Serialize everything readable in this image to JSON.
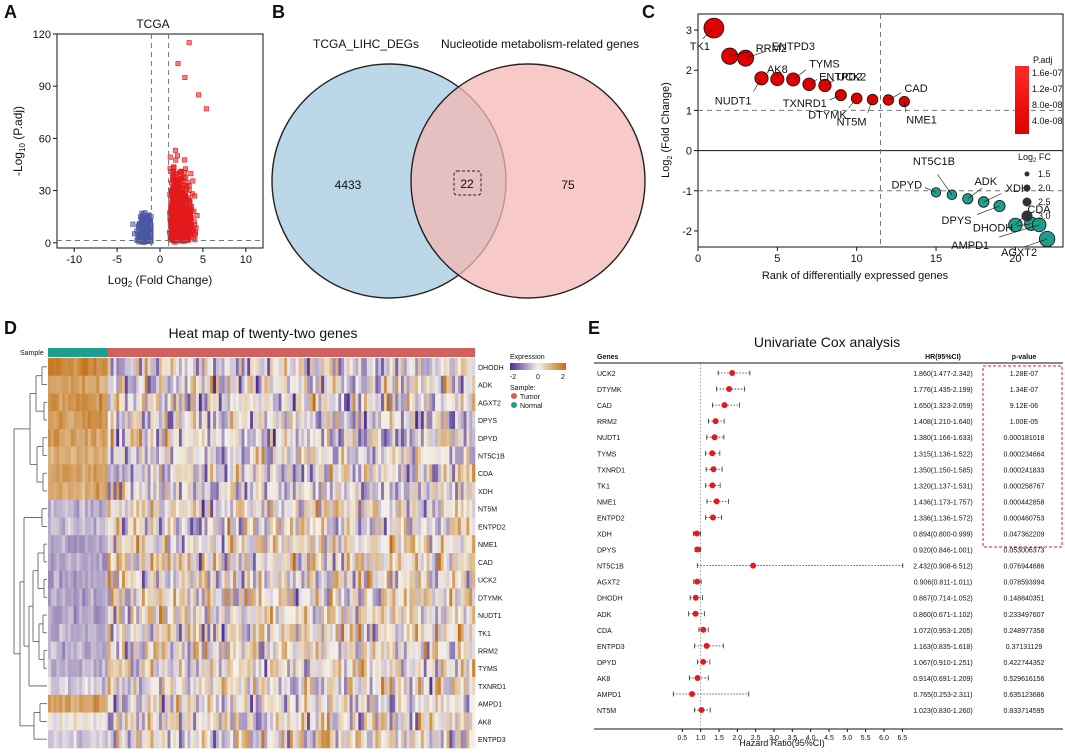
{
  "panel_letters": [
    "A",
    "B",
    "C",
    "D",
    "E"
  ],
  "colors": {
    "up": "#e41a1c",
    "down": "#4a58a5",
    "venn_left": "#bcd8e8",
    "venn_right": "#f4b8b4",
    "teal": "#1f9e8e",
    "tumor": "#d2605c",
    "normal": "#1f9e8e",
    "heat_low": "#4b2c8f",
    "heat_mid": "#f4f1ea",
    "heat_high": "#c06d0c"
  },
  "chart_data": [
    {
      "panel": "A",
      "type": "scatter",
      "title": "TCGA",
      "xlabel": "Log2 (Fold Change)",
      "ylabel": "-Log10 (P.adj)",
      "xlabel_parts": [
        "Log",
        "2",
        " (Fold Change)"
      ],
      "ylabel_parts": [
        "-Log",
        "10",
        " (P.adj)"
      ],
      "xlim": [
        -12,
        12
      ],
      "ylim": [
        -3,
        120
      ],
      "xticks": [
        -10,
        -5,
        0,
        5,
        10
      ],
      "yticks": [
        0,
        30,
        60,
        90,
        120
      ],
      "thresholds": {
        "fc": [
          -1,
          1
        ],
        "padj": 1.3
      },
      "series": [
        {
          "name": "down",
          "color": "#4a58a5",
          "x_range": [
            -6.0,
            -1.0
          ],
          "points_drawn": 380
        },
        {
          "name": "up",
          "color": "#e41a1c",
          "x_range": [
            1.0,
            11.0
          ],
          "points_drawn": 800
        }
      ],
      "highlight_points": [
        {
          "x": 3.4,
          "y": 115
        },
        {
          "x": 2.1,
          "y": 103
        },
        {
          "x": 2.9,
          "y": 95
        },
        {
          "x": 4.5,
          "y": 85
        },
        {
          "x": 5.4,
          "y": 77
        }
      ]
    },
    {
      "panel": "B",
      "type": "venn",
      "sets": [
        {
          "name": "TCGA_LIHC_DEGs",
          "only": 4433
        },
        {
          "name": "Nucleotide metabolism-related genes",
          "only": 75
        }
      ],
      "intersection": 22
    },
    {
      "panel": "C",
      "type": "scatter",
      "xlabel": "Rank of differentially expressed genes",
      "ylabel": "Log2 (Fold Change)",
      "ylabel_parts": [
        "Log",
        "2",
        " (Fold Change)"
      ],
      "xlim": [
        0,
        23
      ],
      "ylim": [
        -2.4,
        3.4
      ],
      "xticks": [
        0,
        5,
        10,
        15,
        20
      ],
      "yticks": [
        -2,
        -1,
        0,
        1,
        2,
        3
      ],
      "hlines": [
        1,
        -1,
        0
      ],
      "vline": 11.5,
      "legend_padj": {
        "title": "P.adj",
        "labels": [
          "1.6e-07",
          "1.2e-07",
          "8.0e-08",
          "4.0e-08"
        ]
      },
      "legend_size": {
        "title": "Log2 FC",
        "title_parts": [
          "Log",
          "2",
          " FC"
        ],
        "labels": [
          "1.5",
          "2.0",
          "2.5",
          "3.0"
        ]
      },
      "points": [
        {
          "gene": "TK1",
          "rank": 1,
          "lfc": 3.05
        },
        {
          "gene": "RRM2",
          "rank": 2,
          "lfc": 2.35
        },
        {
          "gene": "ENTPD3",
          "rank": 3,
          "lfc": 2.3
        },
        {
          "gene": "NUDT1",
          "rank": 4,
          "lfc": 1.8
        },
        {
          "gene": "AK8",
          "rank": 5,
          "lfc": 1.78
        },
        {
          "gene": "TYMS",
          "rank": 6,
          "lfc": 1.77
        },
        {
          "gene": "ENTPD2",
          "rank": 7,
          "lfc": 1.65
        },
        {
          "gene": "UCK2",
          "rank": 8,
          "lfc": 1.62
        },
        {
          "gene": "TXNRD1",
          "rank": 9,
          "lfc": 1.38
        },
        {
          "gene": "DTYMK",
          "rank": 10,
          "lfc": 1.3
        },
        {
          "gene": "NT5M",
          "rank": 11,
          "lfc": 1.27
        },
        {
          "gene": "CAD",
          "rank": 12,
          "lfc": 1.26
        },
        {
          "gene": "NME1",
          "rank": 13,
          "lfc": 1.22
        },
        {
          "gene": "DPYD",
          "rank": 15,
          "lfc": -1.04
        },
        {
          "gene": "NT5C1B",
          "rank": 16,
          "lfc": -1.1
        },
        {
          "gene": "ADK",
          "rank": 17,
          "lfc": -1.2
        },
        {
          "gene": "XDH",
          "rank": 18,
          "lfc": -1.28
        },
        {
          "gene": "DPYS",
          "rank": 19,
          "lfc": -1.38
        },
        {
          "gene": "CDA",
          "rank": 20,
          "lfc": -1.85
        },
        {
          "gene": "DHODH",
          "rank": 21,
          "lfc": -1.82
        },
        {
          "gene": "AMPD1",
          "rank": 21.5,
          "lfc": -1.85
        },
        {
          "gene": "AGXT2",
          "rank": 22,
          "lfc": -2.2
        }
      ]
    },
    {
      "panel": "D",
      "type": "heatmap",
      "title": "Heat map of twenty-two genes",
      "sample_label": "Sample",
      "rows": [
        "DHODH",
        "ADK",
        "AGXT2",
        "DPYS",
        "DPYD",
        "NT5C1B",
        "CDA",
        "XDH",
        "NT5M",
        "ENTPD2",
        "NME1",
        "CAD",
        "UCK2",
        "DTYMK",
        "NUDT1",
        "TK1",
        "RRM2",
        "TYMS",
        "TXNRD1",
        "AMPD1",
        "AK8",
        "ENTPD3"
      ],
      "legend": {
        "title": "Expression",
        "ticks": [
          "-2",
          "0",
          "2"
        ],
        "sample_title": "Sample:",
        "groups": [
          "Tumor",
          "Normal"
        ]
      }
    },
    {
      "panel": "E",
      "type": "forest",
      "title": "Univariate Cox analysis",
      "col_genes": "Genes",
      "col_hr": "HR(95%CI)",
      "col_p": "p-value",
      "xlabel": "Hazard Ratio(95%CI)",
      "xticks": [
        "0.5",
        "1.0",
        "1.5",
        "2.0",
        "2.5",
        "3.0",
        "3.5",
        "4.0",
        "4.5",
        "5.0",
        "5.5",
        "6.0",
        "6.5"
      ],
      "xlim": [
        0.3,
        6.6
      ],
      "rows": [
        {
          "gene": "UCK2",
          "hr": 1.86,
          "lo": 1.477,
          "hi": 2.342,
          "hr_text": "1.860(1.477-2.342)",
          "p": "1.28E-07"
        },
        {
          "gene": "DTYMK",
          "hr": 1.776,
          "lo": 1.435,
          "hi": 2.199,
          "hr_text": "1.776(1.435-2.199)",
          "p": "1.34E-07"
        },
        {
          "gene": "CAD",
          "hr": 1.65,
          "lo": 1.323,
          "hi": 2.059,
          "hr_text": "1.650(1.323-2.059)",
          "p": "9.12E-06"
        },
        {
          "gene": "RRM2",
          "hr": 1.408,
          "lo": 1.21,
          "hi": 1.64,
          "hr_text": "1.408(1.210-1.640)",
          "p": "1.00E-05"
        },
        {
          "gene": "NUDT1",
          "hr": 1.38,
          "lo": 1.166,
          "hi": 1.633,
          "hr_text": "1.380(1.166-1.633)",
          "p": "0.000181018"
        },
        {
          "gene": "TYMS",
          "hr": 1.315,
          "lo": 1.136,
          "hi": 1.522,
          "hr_text": "1.315(1.136-1.522)",
          "p": "0.000234664"
        },
        {
          "gene": "TXNRD1",
          "hr": 1.35,
          "lo": 1.15,
          "hi": 1.585,
          "hr_text": "1.350(1.150-1.585)",
          "p": "0.000241833"
        },
        {
          "gene": "TK1",
          "hr": 1.32,
          "lo": 1.137,
          "hi": 1.531,
          "hr_text": "1.320(1.137-1.531)",
          "p": "0.000258767"
        },
        {
          "gene": "NME1",
          "hr": 1.436,
          "lo": 1.173,
          "hi": 1.757,
          "hr_text": "1.436(1.173-1.757)",
          "p": "0.000442858"
        },
        {
          "gene": "ENTPD2",
          "hr": 1.336,
          "lo": 1.136,
          "hi": 1.572,
          "hr_text": "1.336(1.136-1.572)",
          "p": "0.000460753"
        },
        {
          "gene": "XDH",
          "hr": 0.894,
          "lo": 0.8,
          "hi": 0.999,
          "hr_text": "0.894(0.800-0.999)",
          "p": "0.047362209"
        },
        {
          "gene": "DPYS",
          "hr": 0.92,
          "lo": 0.846,
          "hi": 1.001,
          "hr_text": "0.920(0.846-1.001)",
          "p": "0.053006373"
        },
        {
          "gene": "NT5C1B",
          "hr": 2.432,
          "lo": 0.908,
          "hi": 6.512,
          "hr_text": "2.432(0.908-6.512)",
          "p": "0.076944686"
        },
        {
          "gene": "AGXT2",
          "hr": 0.906,
          "lo": 0.811,
          "hi": 1.011,
          "hr_text": "0.906(0.811-1.011)",
          "p": "0.078593994"
        },
        {
          "gene": "DHODH",
          "hr": 0.867,
          "lo": 0.714,
          "hi": 1.052,
          "hr_text": "0.867(0.714-1.052)",
          "p": "0.148840351"
        },
        {
          "gene": "ADK",
          "hr": 0.86,
          "lo": 0.671,
          "hi": 1.102,
          "hr_text": "0.860(0.671-1.102)",
          "p": "0.233497607"
        },
        {
          "gene": "CDA",
          "hr": 1.072,
          "lo": 0.953,
          "hi": 1.205,
          "hr_text": "1.072(0.953-1.205)",
          "p": "0.248977358"
        },
        {
          "gene": "ENTPD3",
          "hr": 1.163,
          "lo": 0.835,
          "hi": 1.618,
          "hr_text": "1.163(0.835-1.618)",
          "p": "0.37131129"
        },
        {
          "gene": "DPYD",
          "hr": 1.067,
          "lo": 0.91,
          "hi": 1.251,
          "hr_text": "1.067(0.910-1.251)",
          "p": "0.422744352"
        },
        {
          "gene": "AK8",
          "hr": 0.914,
          "lo": 0.691,
          "hi": 1.209,
          "hr_text": "0.914(0.691-1.209)",
          "p": "0.529616156"
        },
        {
          "gene": "AMPD1",
          "hr": 0.765,
          "lo": 0.253,
          "hi": 2.311,
          "hr_text": "0.765(0.253-2.311)",
          "p": "0.635123686"
        },
        {
          "gene": "NT5M",
          "hr": 1.023,
          "lo": 0.83,
          "hi": 1.26,
          "hr_text": "1.023(0.830-1.260)",
          "p": "0.833714595"
        }
      ],
      "significant_box_rows": 11
    }
  ]
}
